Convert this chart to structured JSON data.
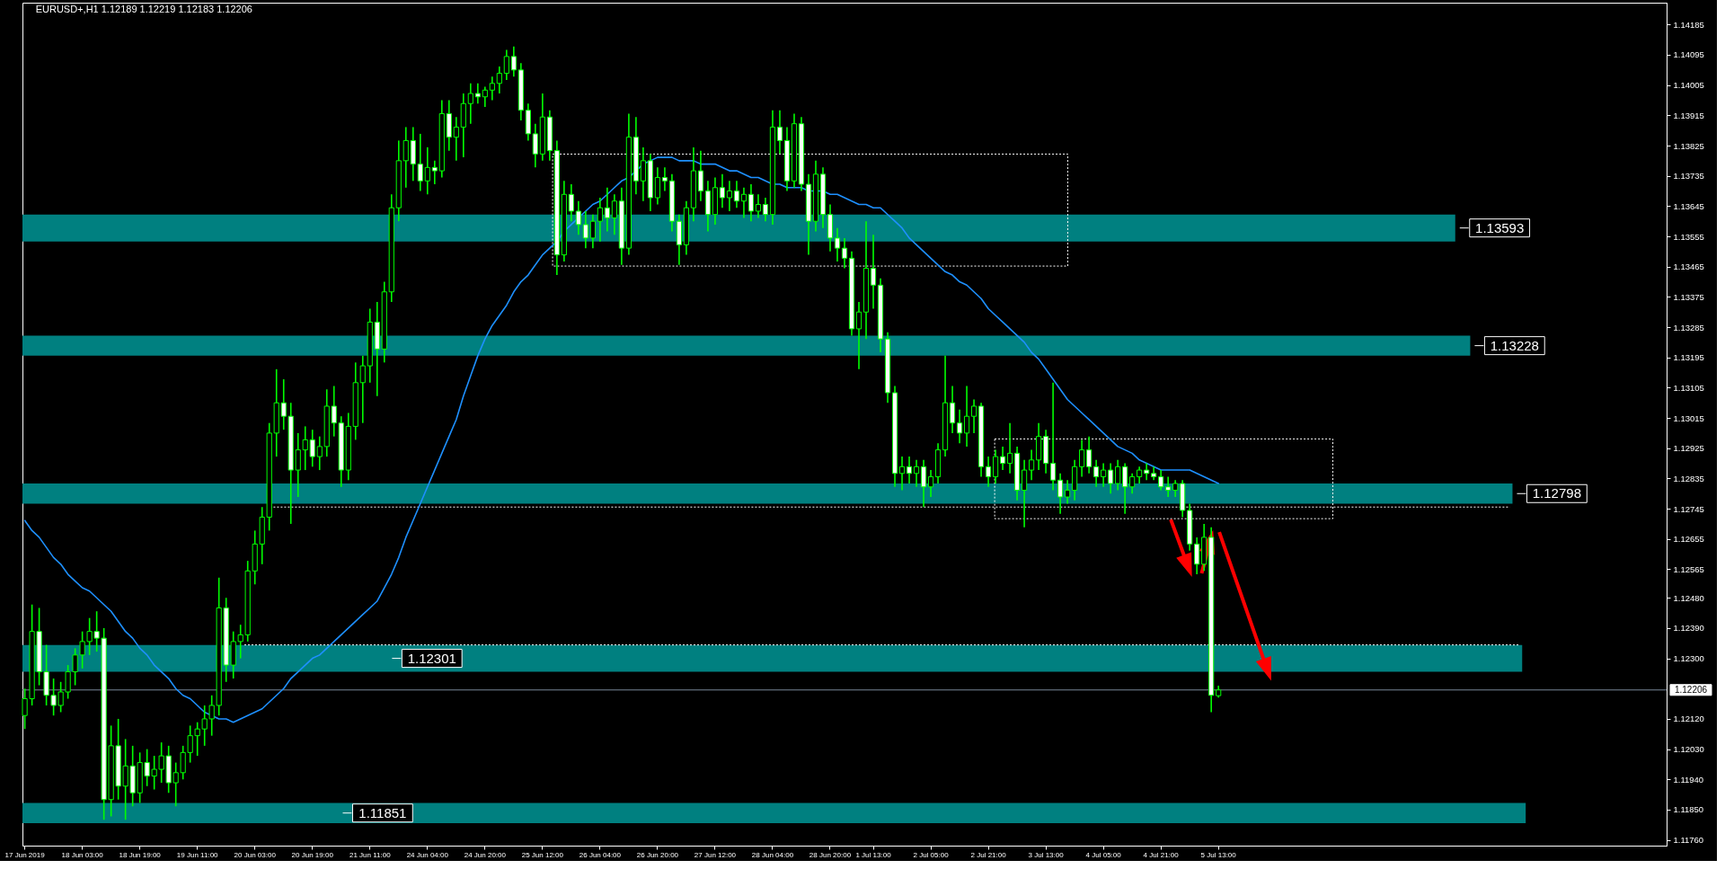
{
  "chart_data": {
    "type": "candlestick",
    "title": "EURUSD+,H1 1.12189 1.12219 1.12183 1.12206",
    "categories": [
      "17 Jun 2019",
      null,
      null,
      null,
      null,
      null,
      null,
      null,
      "18 Jun 03:00",
      null,
      null,
      null,
      null,
      null,
      null,
      null,
      "18 Jun 19:00",
      null,
      null,
      null,
      null,
      null,
      null,
      null,
      "19 Jun 11:00",
      null,
      null,
      null,
      null,
      null,
      null,
      null,
      "20 Jun 03:00",
      null,
      null,
      null,
      null,
      null,
      null,
      null,
      "20 Jun 19:00",
      null,
      null,
      null,
      null,
      null,
      null,
      null,
      "21 Jun 11:00",
      null,
      null,
      null,
      null,
      null,
      null,
      null,
      "24 Jun 04:00",
      null,
      null,
      null,
      null,
      null,
      null,
      null,
      "24 Jun 20:00",
      null,
      null,
      null,
      null,
      null,
      null,
      null,
      "25 Jun 12:00",
      null,
      null,
      null,
      null,
      null,
      null,
      null,
      "26 Jun 04:00",
      null,
      null,
      null,
      null,
      null,
      null,
      null,
      "26 Jun 20:00",
      null,
      null,
      null,
      null,
      null,
      null,
      null,
      "27 Jun 12:00",
      null,
      null,
      null,
      null,
      null,
      null,
      null,
      "28 Jun 04:00",
      null,
      null,
      null,
      null,
      null,
      null,
      null,
      "28 Jun 20:00",
      null,
      null,
      null,
      null,
      null,
      "1 Jul 13:00",
      null,
      null,
      null,
      null,
      null,
      null,
      null,
      "2 Jul 05:00",
      null,
      null,
      null,
      null,
      null,
      null,
      null,
      "2 Jul 21:00",
      null,
      null,
      null,
      null,
      null,
      null,
      null,
      "3 Jul 13:00",
      null,
      null,
      null,
      null,
      null,
      null,
      null,
      "4 Jul 05:00",
      null,
      null,
      null,
      null,
      null,
      null,
      null,
      "4 Jul 21:00",
      null,
      null,
      null,
      null,
      null,
      null,
      null,
      "5 Jul 13:00"
    ],
    "ohlc": [
      [
        1.1213,
        1.1221,
        1.1209,
        1.1218
      ],
      [
        1.1218,
        1.1246,
        1.1216,
        1.1238
      ],
      [
        1.1238,
        1.1245,
        1.1222,
        1.1226
      ],
      [
        1.1226,
        1.1234,
        1.1216,
        1.1219
      ],
      [
        1.1219,
        1.1224,
        1.1213,
        1.1216
      ],
      [
        1.1216,
        1.1223,
        1.1214,
        1.122
      ],
      [
        1.122,
        1.1228,
        1.1218,
        1.1226
      ],
      [
        1.1226,
        1.1233,
        1.1222,
        1.1231
      ],
      [
        1.1231,
        1.1238,
        1.1227,
        1.1235
      ],
      [
        1.1235,
        1.1242,
        1.1231,
        1.1238
      ],
      [
        1.1238,
        1.1244,
        1.1232,
        1.1236
      ],
      [
        1.1236,
        1.1239,
        1.1182,
        1.1188
      ],
      [
        1.1188,
        1.121,
        1.1183,
        1.1204
      ],
      [
        1.1204,
        1.1212,
        1.1188,
        1.1192
      ],
      [
        1.1192,
        1.1206,
        1.1182,
        1.1198
      ],
      [
        1.1198,
        1.1204,
        1.1186,
        1.119
      ],
      [
        1.119,
        1.1202,
        1.1187,
        1.1199
      ],
      [
        1.1199,
        1.1203,
        1.1192,
        1.1195
      ],
      [
        1.1195,
        1.1201,
        1.1191,
        1.1197
      ],
      [
        1.1197,
        1.1205,
        1.1193,
        1.1201
      ],
      [
        1.1201,
        1.1204,
        1.119,
        1.1193
      ],
      [
        1.1193,
        1.1199,
        1.1186,
        1.1196
      ],
      [
        1.1196,
        1.1204,
        1.1194,
        1.1202
      ],
      [
        1.1202,
        1.121,
        1.1199,
        1.1207
      ],
      [
        1.1207,
        1.1211,
        1.1201,
        1.1209
      ],
      [
        1.1209,
        1.1216,
        1.1204,
        1.1212
      ],
      [
        1.1212,
        1.1219,
        1.1207,
        1.1216
      ],
      [
        1.1216,
        1.1254,
        1.1213,
        1.1245
      ],
      [
        1.1245,
        1.1248,
        1.1223,
        1.1228
      ],
      [
        1.1228,
        1.1238,
        1.1224,
        1.1235
      ],
      [
        1.1235,
        1.124,
        1.123,
        1.1237
      ],
      [
        1.1237,
        1.1259,
        1.1235,
        1.1256
      ],
      [
        1.1256,
        1.1268,
        1.1252,
        1.1264
      ],
      [
        1.1264,
        1.1275,
        1.1258,
        1.1272
      ],
      [
        1.1272,
        1.13,
        1.1268,
        1.1297
      ],
      [
        1.1297,
        1.1316,
        1.129,
        1.1306
      ],
      [
        1.1306,
        1.1313,
        1.1298,
        1.1302
      ],
      [
        1.1302,
        1.1306,
        1.127,
        1.1286
      ],
      [
        1.1286,
        1.1297,
        1.1278,
        1.1292
      ],
      [
        1.1292,
        1.1299,
        1.1286,
        1.1295
      ],
      [
        1.1295,
        1.1298,
        1.1287,
        1.129
      ],
      [
        1.129,
        1.1296,
        1.1286,
        1.1293
      ],
      [
        1.1293,
        1.131,
        1.129,
        1.1305
      ],
      [
        1.1305,
        1.1311,
        1.1296,
        1.13
      ],
      [
        1.13,
        1.1302,
        1.1281,
        1.1286
      ],
      [
        1.1286,
        1.1303,
        1.1283,
        1.1299
      ],
      [
        1.1299,
        1.1318,
        1.1295,
        1.1312
      ],
      [
        1.1312,
        1.132,
        1.13,
        1.1317
      ],
      [
        1.1317,
        1.1334,
        1.1312,
        1.133
      ],
      [
        1.133,
        1.1336,
        1.1308,
        1.1322
      ],
      [
        1.1322,
        1.1342,
        1.1318,
        1.1339
      ],
      [
        1.1339,
        1.1368,
        1.1336,
        1.1364
      ],
      [
        1.1364,
        1.1384,
        1.136,
        1.1378
      ],
      [
        1.1378,
        1.1388,
        1.137,
        1.1384
      ],
      [
        1.1384,
        1.1388,
        1.1372,
        1.1377
      ],
      [
        1.1377,
        1.1386,
        1.1369,
        1.1372
      ],
      [
        1.1372,
        1.1382,
        1.1368,
        1.1376
      ],
      [
        1.1376,
        1.1378,
        1.1371,
        1.1375
      ],
      [
        1.1375,
        1.1396,
        1.1373,
        1.1392
      ],
      [
        1.1392,
        1.1396,
        1.1381,
        1.1385
      ],
      [
        1.1385,
        1.1391,
        1.1378,
        1.1388
      ],
      [
        1.1388,
        1.1398,
        1.1379,
        1.1395
      ],
      [
        1.1395,
        1.1401,
        1.1389,
        1.1398
      ],
      [
        1.1398,
        1.1401,
        1.1395,
        1.1397
      ],
      [
        1.1397,
        1.14,
        1.1394,
        1.1399
      ],
      [
        1.1399,
        1.1403,
        1.1396,
        1.1401
      ],
      [
        1.1401,
        1.1406,
        1.1398,
        1.1404
      ],
      [
        1.1404,
        1.1411,
        1.1402,
        1.1409
      ],
      [
        1.1409,
        1.1412,
        1.1403,
        1.1405
      ],
      [
        1.1405,
        1.1407,
        1.139,
        1.1393
      ],
      [
        1.1393,
        1.1395,
        1.1384,
        1.1386
      ],
      [
        1.1386,
        1.1389,
        1.1376,
        1.138
      ],
      [
        1.138,
        1.1398,
        1.1378,
        1.1391
      ],
      [
        1.1391,
        1.1393,
        1.1378,
        1.1381
      ],
      [
        1.1381,
        1.1384,
        1.1344,
        1.135
      ],
      [
        1.135,
        1.1372,
        1.1348,
        1.1368
      ],
      [
        1.1368,
        1.1371,
        1.136,
        1.1363
      ],
      [
        1.1363,
        1.1366,
        1.1356,
        1.1359
      ],
      [
        1.1359,
        1.1363,
        1.1352,
        1.1355
      ],
      [
        1.1355,
        1.1362,
        1.1352,
        1.136
      ],
      [
        1.136,
        1.1367,
        1.1354,
        1.1364
      ],
      [
        1.1364,
        1.137,
        1.1357,
        1.1361
      ],
      [
        1.1361,
        1.1368,
        1.1356,
        1.1366
      ],
      [
        1.1366,
        1.137,
        1.1347,
        1.1352
      ],
      [
        1.1352,
        1.1392,
        1.135,
        1.1385
      ],
      [
        1.1385,
        1.1391,
        1.1368,
        1.1372
      ],
      [
        1.1372,
        1.1382,
        1.1366,
        1.1378
      ],
      [
        1.1378,
        1.138,
        1.1363,
        1.1367
      ],
      [
        1.1367,
        1.1376,
        1.1365,
        1.1373
      ],
      [
        1.1373,
        1.1376,
        1.1369,
        1.1372
      ],
      [
        1.1372,
        1.1374,
        1.1357,
        1.136
      ],
      [
        1.136,
        1.1362,
        1.1347,
        1.1353
      ],
      [
        1.1353,
        1.1366,
        1.135,
        1.1364
      ],
      [
        1.1364,
        1.1382,
        1.136,
        1.1375
      ],
      [
        1.1375,
        1.1381,
        1.1366,
        1.1369
      ],
      [
        1.1369,
        1.1372,
        1.1357,
        1.1362
      ],
      [
        1.1362,
        1.1373,
        1.1359,
        1.137
      ],
      [
        1.137,
        1.1374,
        1.1364,
        1.1367
      ],
      [
        1.1367,
        1.1372,
        1.1363,
        1.1369
      ],
      [
        1.1369,
        1.1372,
        1.1364,
        1.1366
      ],
      [
        1.1366,
        1.137,
        1.1361,
        1.1368
      ],
      [
        1.1368,
        1.1371,
        1.136,
        1.1363
      ],
      [
        1.1363,
        1.1368,
        1.1361,
        1.1365
      ],
      [
        1.1365,
        1.1367,
        1.136,
        1.1362
      ],
      [
        1.1362,
        1.1393,
        1.1359,
        1.1388
      ],
      [
        1.1388,
        1.1393,
        1.138,
        1.1384
      ],
      [
        1.1384,
        1.1388,
        1.1369,
        1.1372
      ],
      [
        1.1372,
        1.1392,
        1.137,
        1.1389
      ],
      [
        1.1389,
        1.1391,
        1.1369,
        1.1371
      ],
      [
        1.1371,
        1.1374,
        1.135,
        1.136
      ],
      [
        1.136,
        1.1378,
        1.1357,
        1.1374
      ],
      [
        1.1374,
        1.1376,
        1.1358,
        1.1362
      ],
      [
        1.1362,
        1.1365,
        1.1351,
        1.1355
      ],
      [
        1.1355,
        1.1358,
        1.1348,
        1.1352
      ],
      [
        1.1352,
        1.1355,
        1.1346,
        1.1349
      ],
      [
        1.1349,
        1.1351,
        1.1326,
        1.1328
      ],
      [
        1.1328,
        1.1336,
        1.1316,
        1.1333
      ],
      [
        1.1333,
        1.136,
        1.1325,
        1.1346
      ],
      [
        1.1346,
        1.1356,
        1.1334,
        1.1341
      ],
      [
        1.1341,
        1.1343,
        1.1321,
        1.1325
      ],
      [
        1.1325,
        1.1327,
        1.1306,
        1.1309
      ],
      [
        1.1309,
        1.1311,
        1.1281,
        1.1285
      ],
      [
        1.1285,
        1.129,
        1.128,
        1.1287
      ],
      [
        1.1287,
        1.129,
        1.1282,
        1.1285
      ],
      [
        1.1285,
        1.1289,
        1.1281,
        1.1287
      ],
      [
        1.1287,
        1.1289,
        1.1275,
        1.1281
      ],
      [
        1.1281,
        1.1286,
        1.1278,
        1.1284
      ],
      [
        1.1284,
        1.1294,
        1.1282,
        1.1292
      ],
      [
        1.1292,
        1.132,
        1.129,
        1.1306
      ],
      [
        1.1306,
        1.1311,
        1.1297,
        1.13
      ],
      [
        1.13,
        1.1304,
        1.1294,
        1.1297
      ],
      [
        1.1297,
        1.1311,
        1.1293,
        1.1302
      ],
      [
        1.1302,
        1.1307,
        1.1297,
        1.1305
      ],
      [
        1.1305,
        1.1306,
        1.1284,
        1.1287
      ],
      [
        1.1287,
        1.129,
        1.1281,
        1.1284
      ],
      [
        1.1284,
        1.1292,
        1.1282,
        1.129
      ],
      [
        1.129,
        1.1293,
        1.1286,
        1.1288
      ],
      [
        1.1288,
        1.13,
        1.1285,
        1.1291
      ],
      [
        1.1291,
        1.1293,
        1.1277,
        1.128
      ],
      [
        1.128,
        1.1289,
        1.1269,
        1.1286
      ],
      [
        1.1286,
        1.1292,
        1.1283,
        1.1289
      ],
      [
        1.1289,
        1.13,
        1.1286,
        1.1296
      ],
      [
        1.1296,
        1.1298,
        1.1285,
        1.1288
      ],
      [
        1.1288,
        1.1312,
        1.128,
        1.1283
      ],
      [
        1.1283,
        1.1285,
        1.1273,
        1.1278
      ],
      [
        1.1278,
        1.1283,
        1.1276,
        1.128
      ],
      [
        1.128,
        1.1289,
        1.1277,
        1.1287
      ],
      [
        1.1287,
        1.1295,
        1.1284,
        1.1292
      ],
      [
        1.1292,
        1.1296,
        1.1285,
        1.1287
      ],
      [
        1.1287,
        1.1289,
        1.1281,
        1.1284
      ],
      [
        1.1284,
        1.1288,
        1.1281,
        1.1286
      ],
      [
        1.1286,
        1.1288,
        1.1279,
        1.1282
      ],
      [
        1.1282,
        1.1289,
        1.128,
        1.1287
      ],
      [
        1.1287,
        1.1288,
        1.1273,
        1.1281
      ],
      [
        1.1281,
        1.1285,
        1.1279,
        1.1284
      ],
      [
        1.1284,
        1.1287,
        1.1282,
        1.1286
      ],
      [
        1.1286,
        1.1288,
        1.1283,
        1.1285
      ],
      [
        1.1285,
        1.1287,
        1.1283,
        1.1284
      ],
      [
        1.1284,
        1.1286,
        1.128,
        1.1281
      ],
      [
        1.1281,
        1.1284,
        1.1278,
        1.128
      ],
      [
        1.128,
        1.1283,
        1.1278,
        1.1282
      ],
      [
        1.1282,
        1.1283,
        1.1272,
        1.1274
      ],
      [
        1.1274,
        1.1276,
        1.1262,
        1.1264
      ],
      [
        1.1264,
        1.1266,
        1.1255,
        1.1258
      ],
      [
        1.1258,
        1.127,
        1.1256,
        1.1266
      ],
      [
        1.1266,
        1.1269,
        1.1214,
        1.1219
      ],
      [
        1.12189,
        1.12219,
        1.12183,
        1.12206
      ]
    ],
    "color": "#00ff00",
    "series": [
      {
        "type": "line",
        "color": "#1e90ff",
        "values": [
          1.1271,
          1.1268,
          1.1266,
          1.1263,
          1.126,
          1.1258,
          1.1255,
          1.1253,
          1.1251,
          1.125,
          1.1248,
          1.1246,
          1.1244,
          1.1241,
          1.1238,
          1.1236,
          1.1233,
          1.1231,
          1.1228,
          1.1226,
          1.1224,
          1.1221,
          1.1219,
          1.1218,
          1.1216,
          1.1214,
          1.1213,
          1.1212,
          1.1212,
          1.1211,
          1.1212,
          1.1213,
          1.1214,
          1.1215,
          1.1217,
          1.1219,
          1.1221,
          1.1224,
          1.1226,
          1.1228,
          1.123,
          1.1231,
          1.1233,
          1.1235,
          1.1237,
          1.1239,
          1.1241,
          1.1243,
          1.1245,
          1.1247,
          1.1251,
          1.1255,
          1.126,
          1.1266,
          1.1271,
          1.1276,
          1.1281,
          1.1286,
          1.1291,
          1.1296,
          1.1301,
          1.1308,
          1.1314,
          1.132,
          1.1325,
          1.1329,
          1.1332,
          1.1335,
          1.1339,
          1.1342,
          1.1344,
          1.1347,
          1.135,
          1.1352,
          1.1354,
          1.1357,
          1.1359,
          1.1361,
          1.1363,
          1.1365,
          1.1366,
          1.1368,
          1.137,
          1.1372,
          1.1373,
          1.1375,
          1.1377,
          1.1378,
          1.1379,
          1.1379,
          1.1379,
          1.1378,
          1.1378,
          1.1378,
          1.1377,
          1.1377,
          1.1377,
          1.1376,
          1.1375,
          1.1375,
          1.1374,
          1.1373,
          1.1373,
          1.1372,
          1.1371,
          1.1371,
          1.137,
          1.137,
          1.137,
          1.1369,
          1.1369,
          1.1369,
          1.1368,
          1.1368,
          1.1367,
          1.1366,
          1.1365,
          1.1365,
          1.1364,
          1.1364,
          1.1362,
          1.136,
          1.1358,
          1.1355,
          1.1353,
          1.1351,
          1.1349,
          1.1347,
          1.1345,
          1.1344,
          1.1342,
          1.1341,
          1.1339,
          1.1337,
          1.1334,
          1.1332,
          1.133,
          1.1328,
          1.1326,
          1.1324,
          1.1321,
          1.1319,
          1.1316,
          1.1313,
          1.131,
          1.1307,
          1.1305,
          1.1303,
          1.1301,
          1.1299,
          1.1297,
          1.1295,
          1.1293,
          1.1292,
          1.1291,
          1.1289,
          1.1288,
          1.1287,
          1.1286,
          1.1286,
          1.1286,
          1.1286,
          1.1286,
          1.1285,
          1.1284,
          1.1283,
          1.1282
        ]
      }
    ],
    "ylim": [
      1.11743,
      1.1425
    ],
    "yticks": [
      1.14185,
      1.14095,
      1.14005,
      1.13915,
      1.13825,
      1.13735,
      1.13645,
      1.13555,
      1.13465,
      1.13375,
      1.13285,
      1.13195,
      1.13105,
      1.13015,
      1.12925,
      1.12835,
      1.12745,
      1.12655,
      1.12565,
      {
        "value": 1.1248,
        "label": "1.12480"
      },
      {
        "value": 1.1239,
        "label": "1.12390"
      },
      {
        "value": 1.123,
        "label": "1.12300"
      },
      {
        "value": 1.1212,
        "label": "1.12120"
      },
      {
        "value": 1.1203,
        "label": "1.12030"
      },
      {
        "value": 1.1194,
        "label": "1.11940"
      },
      {
        "value": 1.1185,
        "label": "1.11850"
      },
      {
        "value": 1.1176,
        "label": "1.11760"
      }
    ],
    "bands": [
      {
        "axis": "y",
        "from": 1.1354,
        "to": 1.1362,
        "label": "1.13593",
        "color": "#008080"
      },
      {
        "axis": "y",
        "from": 1.132,
        "to": 1.1326,
        "label": "1.13228",
        "color": "#008080"
      },
      {
        "axis": "y",
        "from": 1.1276,
        "to": 1.1282,
        "label": "1.12798",
        "color": "#008080"
      },
      {
        "axis": "y",
        "from": 1.1226,
        "to": 1.1234,
        "label": "1.12301",
        "color": "#008080"
      },
      {
        "axis": "y",
        "from": 1.1181,
        "to": 1.1187,
        "label": "1.11851",
        "color": "#008080"
      }
    ],
    "ref_lines": [
      {
        "axis": "y",
        "value": 1.12206,
        "label": "1.12206",
        "color": "#778899"
      },
      {
        "axis": "y",
        "value": 1.1275,
        "line_style": "dotted",
        "color": "#ffffff"
      },
      {
        "axis": "y",
        "value": 1.1234,
        "line_style": "dotted",
        "color": "#ffffff"
      }
    ]
  }
}
